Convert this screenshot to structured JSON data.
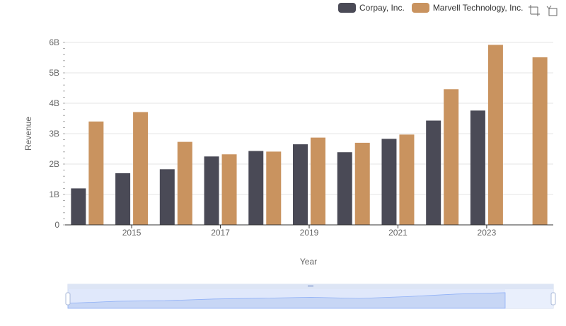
{
  "legend": {
    "items": [
      {
        "label": "Corpay, Inc.",
        "color": "#4a4a56"
      },
      {
        "label": "Marvell Technology, Inc.",
        "color": "#c9935f"
      }
    ]
  },
  "toolbox": {
    "icons": [
      "zoom-icon",
      "zoom-reset-icon"
    ]
  },
  "chart_data": {
    "type": "bar",
    "xlabel": "Year",
    "ylabel": "Revenue",
    "ylim": [
      0,
      6000000000
    ],
    "y_ticks": [
      "0",
      "1B",
      "2B",
      "3B",
      "4B",
      "5B",
      "6B"
    ],
    "x_tick_labels": [
      "2015",
      "2017",
      "2019",
      "2021",
      "2023"
    ],
    "categories": [
      "2014",
      "2015",
      "2016",
      "2017",
      "2018",
      "2019",
      "2020",
      "2021",
      "2022",
      "2023",
      "2024"
    ],
    "grid": true,
    "legend_position": "top-right",
    "series": [
      {
        "name": "Corpay, Inc.",
        "color": "#4a4a56",
        "values": [
          1200000000,
          1700000000,
          1830000000,
          2250000000,
          2430000000,
          2650000000,
          2390000000,
          2830000000,
          3430000000,
          3760000000,
          null
        ]
      },
      {
        "name": "Marvell Technology, Inc.",
        "color": "#c9935f",
        "values": [
          3400000000,
          3710000000,
          2730000000,
          2320000000,
          2410000000,
          2870000000,
          2700000000,
          2970000000,
          4460000000,
          5920000000,
          5510000000
        ]
      }
    ]
  }
}
